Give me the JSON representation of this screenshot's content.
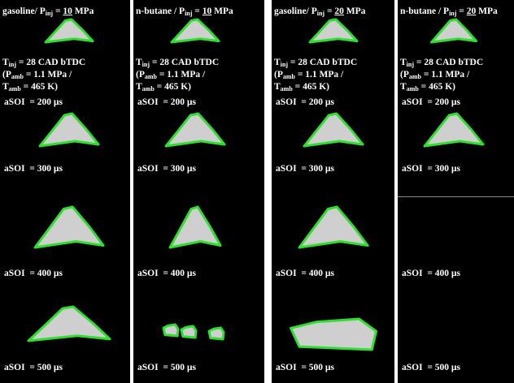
{
  "columns": [
    {
      "fuel": "gasoline/",
      "p_symbol": "P",
      "p_sub": "inj",
      "p_eq": " = ",
      "p_value": "10",
      "p_unit": " MPa",
      "labels": [
        "aSOI  = 200 µs",
        "aSOI  = 300 µs",
        "aSOI  = 400 µs",
        "aSOI  = 500 µs"
      ]
    },
    {
      "fuel": "n-butane /",
      "p_symbol": "P",
      "p_sub": "inj",
      "p_eq": " = ",
      "p_value": "10",
      "p_unit": " MPa",
      "labels": [
        "aSOI  = 200 µs",
        "aSOI  = 300 µs",
        "aSOI  = 400 µs",
        "aSOI  = 500 µs"
      ]
    },
    {
      "fuel": "gasoline/",
      "p_symbol": "P",
      "p_sub": "inj",
      "p_eq": " = ",
      "p_value": "20",
      "p_unit": " MPa",
      "labels": [
        "aSOI  = 200 µs",
        "aSOI  = 300 µs",
        "aSOI  = 400 µs",
        "aSOI  = 500 µs"
      ]
    },
    {
      "fuel": "n-butane /",
      "p_symbol": "P",
      "p_sub": "inj",
      "p_eq": " = ",
      "p_value": "20",
      "p_unit": " MPa",
      "labels": [
        "aSOI  = 200 µs",
        "aSOI  = 300 µs",
        "aSOI  = 400 µs",
        "aSOI  = 500 µs"
      ]
    }
  ],
  "conditions": [
    {
      "pre": "T",
      "sub": "inj",
      "rest": " = 28 CAD bTDC"
    },
    {
      "pre": "(P",
      "sub": "amb",
      "rest": " = 1.1 MPa /"
    },
    {
      "pre": "T",
      "sub": "amb",
      "rest": " = 465 K)"
    }
  ]
}
